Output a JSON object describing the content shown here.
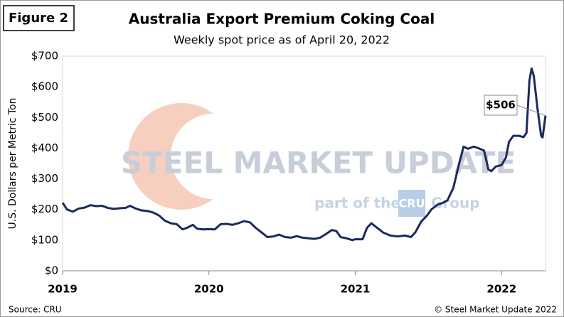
{
  "chart_data": {
    "type": "line",
    "figure_label": "Figure 2",
    "title": "Australia Export Premium Coking Coal",
    "subtitle": "Weekly spot price as of April 20, 2022",
    "y_label": "U.S. Dollars per Metric Ton",
    "source": "Source: CRU",
    "credit": "© Steel Market Update 2022",
    "watermark": {
      "line1": "STEEL MARKET UPDATE",
      "line2a": "part of the",
      "logo": "CRU",
      "line2b": "Group"
    },
    "annotation": {
      "text": "$506"
    },
    "xlim": [
      2019,
      2022.3
    ],
    "xticks": [
      2019,
      2020,
      2021,
      2022
    ],
    "ylim": [
      0,
      700
    ],
    "yticks": [
      {
        "value": 0,
        "label": "$0"
      },
      {
        "value": 100,
        "label": "$100"
      },
      {
        "value": 200,
        "label": "$200"
      },
      {
        "value": 300,
        "label": "$300"
      },
      {
        "value": 400,
        "label": "$400"
      },
      {
        "value": 500,
        "label": "$500"
      },
      {
        "value": 600,
        "label": "$600"
      },
      {
        "value": 700,
        "label": "$700"
      }
    ],
    "grid": false,
    "series": [
      {
        "color": "#1b2a5e",
        "x": [
          2019.0,
          2019.03,
          2019.07,
          2019.11,
          2019.15,
          2019.19,
          2019.23,
          2019.27,
          2019.31,
          2019.35,
          2019.39,
          2019.43,
          2019.46,
          2019.5,
          2019.54,
          2019.58,
          2019.62,
          2019.66,
          2019.7,
          2019.74,
          2019.78,
          2019.82,
          2019.85,
          2019.89,
          2019.92,
          2019.96,
          2020.0,
          2020.04,
          2020.08,
          2020.12,
          2020.16,
          2020.2,
          2020.24,
          2020.28,
          2020.32,
          2020.36,
          2020.4,
          2020.44,
          2020.48,
          2020.52,
          2020.56,
          2020.6,
          2020.64,
          2020.68,
          2020.72,
          2020.76,
          2020.8,
          2020.84,
          2020.87,
          2020.9,
          2020.94,
          2020.98,
          2021.0,
          2021.05,
          2021.08,
          2021.11,
          2021.15,
          2021.19,
          2021.24,
          2021.29,
          2021.34,
          2021.38,
          2021.41,
          2021.45,
          2021.49,
          2021.52,
          2021.56,
          2021.6,
          2021.63,
          2021.67,
          2021.71,
          2021.74,
          2021.77,
          2021.81,
          2021.84,
          2021.88,
          2021.91,
          2021.93,
          2021.96,
          2022.0,
          2022.03,
          2022.05,
          2022.08,
          2022.12,
          2022.15,
          2022.17,
          2022.19,
          2022.205,
          2022.22,
          2022.245,
          2022.27,
          2022.28,
          2022.3
        ],
        "values": [
          222,
          200,
          193,
          203,
          206,
          214,
          211,
          212,
          205,
          202,
          204,
          205,
          212,
          203,
          197,
          195,
          190,
          180,
          163,
          155,
          152,
          135,
          140,
          150,
          137,
          135,
          136,
          135,
          152,
          153,
          150,
          155,
          162,
          158,
          140,
          125,
          110,
          112,
          118,
          110,
          108,
          113,
          108,
          106,
          104,
          108,
          120,
          133,
          130,
          110,
          106,
          100,
          103,
          103,
          140,
          155,
          140,
          125,
          115,
          112,
          115,
          110,
          125,
          160,
          180,
          200,
          215,
          222,
          230,
          270,
          350,
          405,
          398,
          405,
          400,
          392,
          330,
          325,
          340,
          345,
          370,
          420,
          440,
          440,
          436,
          450,
          620,
          660,
          635,
          530,
          440,
          435,
          506
        ]
      }
    ]
  }
}
